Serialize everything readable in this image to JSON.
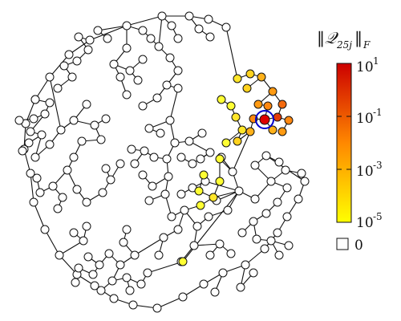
{
  "colorbar": {
    "title": "‖𝒬₂₅ⱼ‖_F",
    "tick_top": "10^1",
    "tick_mid1": "10^-1",
    "tick_mid2": "10^-3",
    "tick_bottom": "10^-5",
    "zero_label": "0",
    "gradient_top": "#cc0000",
    "gradient_mid": "#ff8800",
    "gradient_bottom": "#ffff00"
  },
  "colors": {
    "zero_node": "#ffffff",
    "highlight_ring": "#0000cc",
    "source_node": "#dd0000"
  }
}
